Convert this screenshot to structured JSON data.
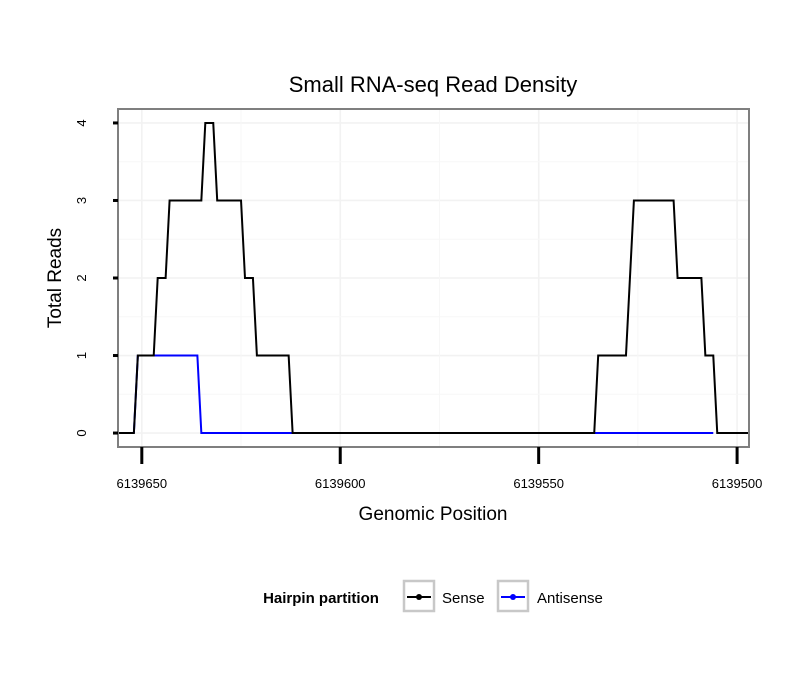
{
  "chart_data": {
    "type": "line",
    "title": "Small RNA-seq Read Density",
    "xlabel": "Genomic Position",
    "ylabel": "Total Reads",
    "xlim": [
      6139656,
      6139497
    ],
    "ylim": [
      -0.18,
      4.18
    ],
    "x_reversed": true,
    "xticks": [
      6139650,
      6139600,
      6139550,
      6139500
    ],
    "xtick_labels": [
      "6139650",
      "6139600",
      "6139550",
      "6139500"
    ],
    "yticks": [
      0,
      1,
      2,
      3,
      4
    ],
    "ytick_labels": [
      "0",
      "1",
      "2",
      "3",
      "4"
    ],
    "grid": true,
    "legend": {
      "title": "Hairpin partition",
      "position": "bottom",
      "entries": [
        "Sense",
        "Antisense"
      ]
    },
    "series": [
      {
        "name": "Sense",
        "color": "#000000",
        "points": [
          [
            6139656,
            0
          ],
          [
            6139652,
            0
          ],
          [
            6139651,
            1
          ],
          [
            6139647,
            1
          ],
          [
            6139646,
            2
          ],
          [
            6139644,
            2
          ],
          [
            6139643,
            3
          ],
          [
            6139635,
            3
          ],
          [
            6139634,
            4
          ],
          [
            6139632,
            4
          ],
          [
            6139631,
            3
          ],
          [
            6139625,
            3
          ],
          [
            6139624,
            2
          ],
          [
            6139622,
            2
          ],
          [
            6139621,
            1
          ],
          [
            6139613,
            1
          ],
          [
            6139612,
            0
          ],
          [
            6139536,
            0
          ],
          [
            6139535,
            1
          ],
          [
            6139528,
            1
          ],
          [
            6139526,
            3
          ],
          [
            6139516,
            3
          ],
          [
            6139515,
            2
          ],
          [
            6139509,
            2
          ],
          [
            6139508,
            1
          ],
          [
            6139506,
            1
          ],
          [
            6139505,
            0
          ],
          [
            6139497,
            0
          ]
        ]
      },
      {
        "name": "Antisense",
        "color": "#0000ff",
        "points": [
          [
            6139652,
            0
          ],
          [
            6139651,
            1
          ],
          [
            6139636,
            1
          ],
          [
            6139635,
            0
          ],
          [
            6139613,
            0
          ],
          [
            6139612,
            0
          ],
          [
            6139536,
            0
          ],
          [
            6139506,
            0
          ]
        ]
      }
    ]
  }
}
